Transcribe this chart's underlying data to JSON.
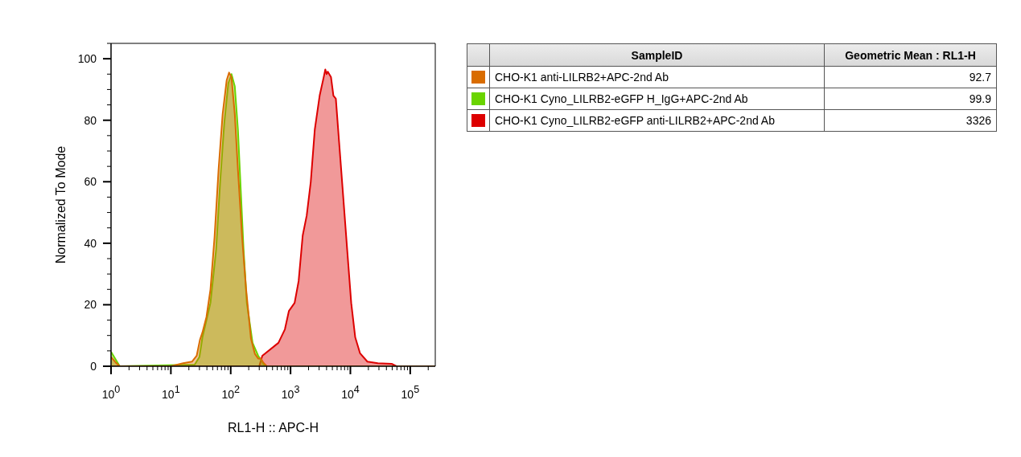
{
  "chart_data": {
    "type": "area",
    "xlabel": "RL1-H :: APC-H",
    "ylabel": "Normalized To Mode",
    "legend_title": "SampleID",
    "annotations": [
      "Geometric Mean : RL1-H",
      "92.7",
      "99.9",
      "3326"
    ],
    "log": "x",
    "legend": "right",
    "xlim": [
      1,
      262144
    ],
    "xticks": [
      {
        "value": 1,
        "label": "10$^{0}$"
      },
      {
        "value": 2,
        "label": null
      },
      {
        "value": 3,
        "label": null
      },
      {
        "value": 4,
        "label": null
      },
      {
        "value": 5,
        "label": null
      },
      {
        "value": 6,
        "label": null
      },
      {
        "value": 7,
        "label": null
      },
      {
        "value": 8,
        "label": null
      },
      {
        "value": 9,
        "label": null
      },
      {
        "value": 10,
        "label": "10$^{1}$"
      },
      {
        "value": 20,
        "label": null
      },
      {
        "value": 30,
        "label": null
      },
      {
        "value": 40,
        "label": null
      },
      {
        "value": 50,
        "label": null
      },
      {
        "value": 60,
        "label": null
      },
      {
        "value": 70,
        "label": null
      },
      {
        "value": 80,
        "label": null
      },
      {
        "value": 90,
        "label": null
      },
      {
        "value": 100,
        "label": "10$^{2}$"
      },
      {
        "value": 200,
        "label": null
      },
      {
        "value": 300,
        "label": null
      },
      {
        "value": 400,
        "label": null
      },
      {
        "value": 500,
        "label": null
      },
      {
        "value": 600,
        "label": null
      },
      {
        "value": 700,
        "label": null
      },
      {
        "value": 800,
        "label": null
      },
      {
        "value": 900,
        "label": null
      },
      {
        "value": 1000,
        "label": "10$^{3}$"
      },
      {
        "value": 2000,
        "label": null
      },
      {
        "value": 3000,
        "label": null
      },
      {
        "value": 4000,
        "label": null
      },
      {
        "value": 5000,
        "label": null
      },
      {
        "value": 6000,
        "label": null
      },
      {
        "value": 7000,
        "label": null
      },
      {
        "value": 8000,
        "label": null
      },
      {
        "value": 9000,
        "label": null
      },
      {
        "value": 10000,
        "label": "10$^{4}$"
      },
      {
        "value": 20000,
        "label": null
      },
      {
        "value": 30000,
        "label": null
      },
      {
        "value": 40000,
        "label": null
      },
      {
        "value": 50000,
        "label": null
      },
      {
        "value": 60000,
        "label": null
      },
      {
        "value": 70000,
        "label": null
      },
      {
        "value": 80000,
        "label": null
      },
      {
        "value": 90000,
        "label": null
      },
      {
        "value": 100000,
        "label": "10$^{5}$"
      },
      {
        "value": 200000,
        "label": null
      }
    ],
    "ylim": [
      0,
      105
    ],
    "yticks": [
      0,
      {
        "value": 5,
        "label": null
      },
      {
        "value": 10,
        "label": null
      },
      {
        "value": 15,
        "label": null
      },
      20,
      {
        "value": 25,
        "label": null
      },
      {
        "value": 30,
        "label": null
      },
      {
        "value": 35,
        "label": null
      },
      40,
      {
        "value": 45,
        "label": null
      },
      {
        "value": 50,
        "label": null
      },
      {
        "value": 55,
        "label": null
      },
      60,
      {
        "value": 65,
        "label": null
      },
      {
        "value": 70,
        "label": null
      },
      {
        "value": 75,
        "label": null
      },
      80,
      {
        "value": 85,
        "label": null
      },
      {
        "value": 90,
        "label": null
      },
      {
        "value": 95,
        "label": null
      },
      100,
      {
        "value": 105,
        "label": null
      }
    ],
    "series": [
      {
        "name": "CHO-K1 anti-LILRB2+APC-2nd Ab",
        "color": "#d96c00",
        "x": [
          1,
          1.2,
          1.4,
          10,
          16,
          22.5,
          27,
          30.6,
          33.7,
          39.3,
          45.9,
          53.7,
          62.7,
          73.3,
          85.6,
          94,
          103,
          117,
          132,
          155,
          181,
          218,
          254,
          288,
          320,
          350,
          400,
          262144
        ],
        "values": [
          3,
          1.2,
          0,
          0,
          1,
          1.5,
          3.4,
          8.6,
          11,
          16,
          25,
          42,
          64,
          82,
          93,
          95.5,
          94,
          82,
          64,
          42,
          25,
          9,
          4,
          2.5,
          2.5,
          1.2,
          0,
          0
        ]
      },
      {
        "name": "CHO-K1 Cyno_LILRB2-eGFP H_IgG+APC-2nd Ab",
        "color": "#6ad400",
        "x": [
          1,
          1.4,
          25,
          30,
          33.7,
          45.9,
          57.1,
          66.7,
          78,
          91.1,
          103,
          117,
          132,
          145,
          164,
          186,
          232,
          288,
          337,
          370,
          262144
        ],
        "values": [
          4.7,
          0,
          0.5,
          3,
          9.4,
          20.6,
          38,
          60,
          79,
          92,
          95,
          91,
          77,
          60,
          38,
          20.6,
          7.6,
          3.4,
          1.5,
          0,
          0
        ]
      },
      {
        "name": "CHO-K1 Cyno_LILRB2-eGFP anti-LILRB2+APC-2nd Ab",
        "color": "#dd0000",
        "x": [
          1,
          300,
          337,
          627,
          804,
          940,
          1169,
          1365,
          1596,
          1862,
          2178,
          2543,
          3065,
          3581,
          3811,
          4000,
          4188,
          4742,
          5204,
          5715,
          6471,
          7556,
          8831,
          10320,
          12050,
          14520,
          19230,
          28770,
          48860,
          58880,
          262144
        ],
        "values": [
          0,
          0,
          3.4,
          7.6,
          12,
          18,
          20.6,
          27.7,
          42.5,
          49,
          60,
          77,
          88,
          94,
          96.5,
          95,
          95.8,
          94,
          88,
          87,
          73,
          55.6,
          38,
          20.6,
          9.4,
          4.2,
          1.5,
          1,
          0.8,
          0,
          0
        ]
      }
    ]
  }
}
